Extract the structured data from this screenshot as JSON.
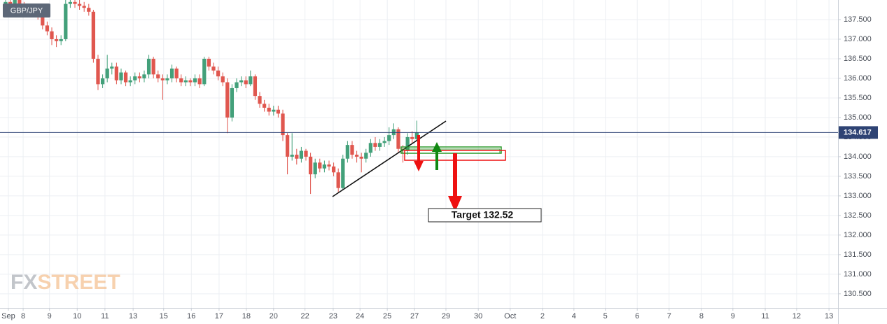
{
  "chart_data": {
    "type": "candlestick",
    "title": "GBP/JPY",
    "watermark": [
      "FX",
      "STREET"
    ],
    "up_color": "#43a07a",
    "down_color": "#e0574f",
    "grid": true,
    "xlim": [
      -1.21,
      180.15
    ],
    "xticks": [
      {
        "value": 0.6,
        "label": "Sep"
      },
      {
        "value": 3.8,
        "label": "8"
      },
      {
        "value": 9.5,
        "label": "9"
      },
      {
        "value": 15.5,
        "label": "10"
      },
      {
        "value": 21.5,
        "label": "11"
      },
      {
        "value": 27.6,
        "label": "13"
      },
      {
        "value": 34.2,
        "label": "15"
      },
      {
        "value": 40.2,
        "label": "16"
      },
      {
        "value": 46.2,
        "label": "17"
      },
      {
        "value": 52.1,
        "label": "18"
      },
      {
        "value": 58,
        "label": "20"
      },
      {
        "value": 64.8,
        "label": "22"
      },
      {
        "value": 70.9,
        "label": "23"
      },
      {
        "value": 76.7,
        "label": "24"
      },
      {
        "value": 82.6,
        "label": "25"
      },
      {
        "value": 88.5,
        "label": "27"
      },
      {
        "value": 95.3,
        "label": "29"
      },
      {
        "value": 102.3,
        "label": "30"
      },
      {
        "value": 109.2,
        "label": "Oct"
      },
      {
        "value": 116.2,
        "label": "2"
      },
      {
        "value": 123,
        "label": "4"
      },
      {
        "value": 129.8,
        "label": "5"
      },
      {
        "value": 136.7,
        "label": "6"
      },
      {
        "value": 143.6,
        "label": "7"
      },
      {
        "value": 150.6,
        "label": "8"
      },
      {
        "value": 157.4,
        "label": "9"
      },
      {
        "value": 164.4,
        "label": "11"
      },
      {
        "value": 171.2,
        "label": "12"
      },
      {
        "value": 178.2,
        "label": "13"
      }
    ],
    "ylim": [
      130.14,
      138.0
    ],
    "yticks": [
      {
        "value": 130.5,
        "label": "130.500"
      },
      {
        "value": 131,
        "label": "131.000"
      },
      {
        "value": 131.5,
        "label": "131.500"
      },
      {
        "value": 132,
        "label": "132.000"
      },
      {
        "value": 132.5,
        "label": "132.500"
      },
      {
        "value": 133,
        "label": "133.000"
      },
      {
        "value": 133.5,
        "label": "133.500"
      },
      {
        "value": 134,
        "label": "134.000"
      },
      {
        "value": 134.5,
        "label": "134.500"
      },
      {
        "value": 135,
        "label": "135.000"
      },
      {
        "value": 135.5,
        "label": "135.500"
      },
      {
        "value": 136,
        "label": "136.000"
      },
      {
        "value": 136.5,
        "label": "136.500"
      },
      {
        "value": 137,
        "label": "137.000"
      },
      {
        "value": 137.5,
        "label": "137.500"
      }
    ],
    "current_price": 134.617,
    "target_label": "Target 132.52",
    "ohlc": [
      [
        137.9,
        138.05,
        137.8,
        137.95
      ],
      [
        137.95,
        138.05,
        137.8,
        137.9
      ],
      [
        137.9,
        138.1,
        137.8,
        138.0
      ],
      [
        138.0,
        138.1,
        137.75,
        137.85
      ],
      [
        137.85,
        137.95,
        137.7,
        137.8
      ],
      [
        137.8,
        137.9,
        137.6,
        137.7
      ],
      [
        137.7,
        137.85,
        137.6,
        137.75
      ],
      [
        137.75,
        137.85,
        137.5,
        137.6
      ],
      [
        137.6,
        137.7,
        137.25,
        137.35
      ],
      [
        137.35,
        137.45,
        137.1,
        137.2
      ],
      [
        137.2,
        137.3,
        136.85,
        137.0
      ],
      [
        137.0,
        137.1,
        136.8,
        136.95
      ],
      [
        136.95,
        137.1,
        136.85,
        137.0
      ],
      [
        137.0,
        138.0,
        136.95,
        137.9
      ],
      [
        137.9,
        138.05,
        137.8,
        137.95
      ],
      [
        137.95,
        138.05,
        137.8,
        137.9
      ],
      [
        137.9,
        138.0,
        137.75,
        137.85
      ],
      [
        137.85,
        137.95,
        137.7,
        137.8
      ],
      [
        137.8,
        137.9,
        137.6,
        137.7
      ],
      [
        137.7,
        137.75,
        136.4,
        136.5
      ],
      [
        136.5,
        136.6,
        135.7,
        135.85
      ],
      [
        135.85,
        136.1,
        135.75,
        136.0
      ],
      [
        136.0,
        136.6,
        135.9,
        136.25
      ],
      [
        136.25,
        136.4,
        136.1,
        136.3
      ],
      [
        136.3,
        136.4,
        135.85,
        135.95
      ],
      [
        135.95,
        136.25,
        135.85,
        136.15
      ],
      [
        136.15,
        136.2,
        135.8,
        135.9
      ],
      [
        135.9,
        136.05,
        135.8,
        135.95
      ],
      [
        135.95,
        136.15,
        135.85,
        136.05
      ],
      [
        136.05,
        136.15,
        135.9,
        136.0
      ],
      [
        136.0,
        136.2,
        135.9,
        136.1
      ],
      [
        136.1,
        136.6,
        136.0,
        136.5
      ],
      [
        136.5,
        136.55,
        136.0,
        136.1
      ],
      [
        136.1,
        136.2,
        135.9,
        136.0
      ],
      [
        136.0,
        136.1,
        135.45,
        135.95
      ],
      [
        135.95,
        136.1,
        135.85,
        136.0
      ],
      [
        136.0,
        136.35,
        135.9,
        136.25
      ],
      [
        136.25,
        136.3,
        135.9,
        136.0
      ],
      [
        136.0,
        136.1,
        135.8,
        135.9
      ],
      [
        135.9,
        136.05,
        135.8,
        135.95
      ],
      [
        135.95,
        136.0,
        135.8,
        135.9
      ],
      [
        135.9,
        136.1,
        135.8,
        136.0
      ],
      [
        136.0,
        136.1,
        135.75,
        135.85
      ],
      [
        135.85,
        136.55,
        135.8,
        136.5
      ],
      [
        136.5,
        136.55,
        136.2,
        136.3
      ],
      [
        136.3,
        136.4,
        136.1,
        136.2
      ],
      [
        136.2,
        136.3,
        135.95,
        136.05
      ],
      [
        136.05,
        136.15,
        135.8,
        135.9
      ],
      [
        135.9,
        136.0,
        134.6,
        135.0
      ],
      [
        135.0,
        135.85,
        134.9,
        135.75
      ],
      [
        135.75,
        136.0,
        135.65,
        135.9
      ],
      [
        135.9,
        136.05,
        135.8,
        135.95
      ],
      [
        135.95,
        136.05,
        135.75,
        135.85
      ],
      [
        135.85,
        136.2,
        135.8,
        136.05
      ],
      [
        136.05,
        136.1,
        135.45,
        135.55
      ],
      [
        135.55,
        135.65,
        135.25,
        135.35
      ],
      [
        135.35,
        135.45,
        135.15,
        135.25
      ],
      [
        135.25,
        135.35,
        135.05,
        135.15
      ],
      [
        135.15,
        135.3,
        135.05,
        135.2
      ],
      [
        135.2,
        135.3,
        135.0,
        135.1
      ],
      [
        135.1,
        135.2,
        134.4,
        134.55
      ],
      [
        134.55,
        134.6,
        133.55,
        134.0
      ],
      [
        134.0,
        134.6,
        133.9,
        134.05
      ],
      [
        134.05,
        134.2,
        133.8,
        133.95
      ],
      [
        133.95,
        134.25,
        133.85,
        134.15
      ],
      [
        134.15,
        134.2,
        133.9,
        134.0
      ],
      [
        134.0,
        134.1,
        133.05,
        133.55
      ],
      [
        133.55,
        133.95,
        133.45,
        133.85
      ],
      [
        133.85,
        133.95,
        133.6,
        133.7
      ],
      [
        133.7,
        133.9,
        133.6,
        133.8
      ],
      [
        133.8,
        133.9,
        133.65,
        133.75
      ],
      [
        133.75,
        133.85,
        133.5,
        133.6
      ],
      [
        133.6,
        133.7,
        133.1,
        133.2
      ],
      [
        133.2,
        134.05,
        133.15,
        133.95
      ],
      [
        133.95,
        134.4,
        133.85,
        134.3
      ],
      [
        134.3,
        134.4,
        133.95,
        134.05
      ],
      [
        134.05,
        134.15,
        133.85,
        134.0
      ],
      [
        134.0,
        134.1,
        133.6,
        133.95
      ],
      [
        133.95,
        134.2,
        133.85,
        134.1
      ],
      [
        134.1,
        134.45,
        134.0,
        134.35
      ],
      [
        134.35,
        134.5,
        134.15,
        134.25
      ],
      [
        134.25,
        134.45,
        134.15,
        134.35
      ],
      [
        134.35,
        134.5,
        134.25,
        134.4
      ],
      [
        134.4,
        134.75,
        134.3,
        134.55
      ],
      [
        134.55,
        134.85,
        134.45,
        134.7
      ],
      [
        134.7,
        134.75,
        134.1,
        134.2
      ],
      [
        134.2,
        134.3,
        133.85,
        134.15
      ],
      [
        134.15,
        134.6,
        134.05,
        134.5
      ],
      [
        134.5,
        134.65,
        134.35,
        134.45
      ],
      [
        134.45,
        134.92,
        134.4,
        134.62
      ]
    ]
  }
}
